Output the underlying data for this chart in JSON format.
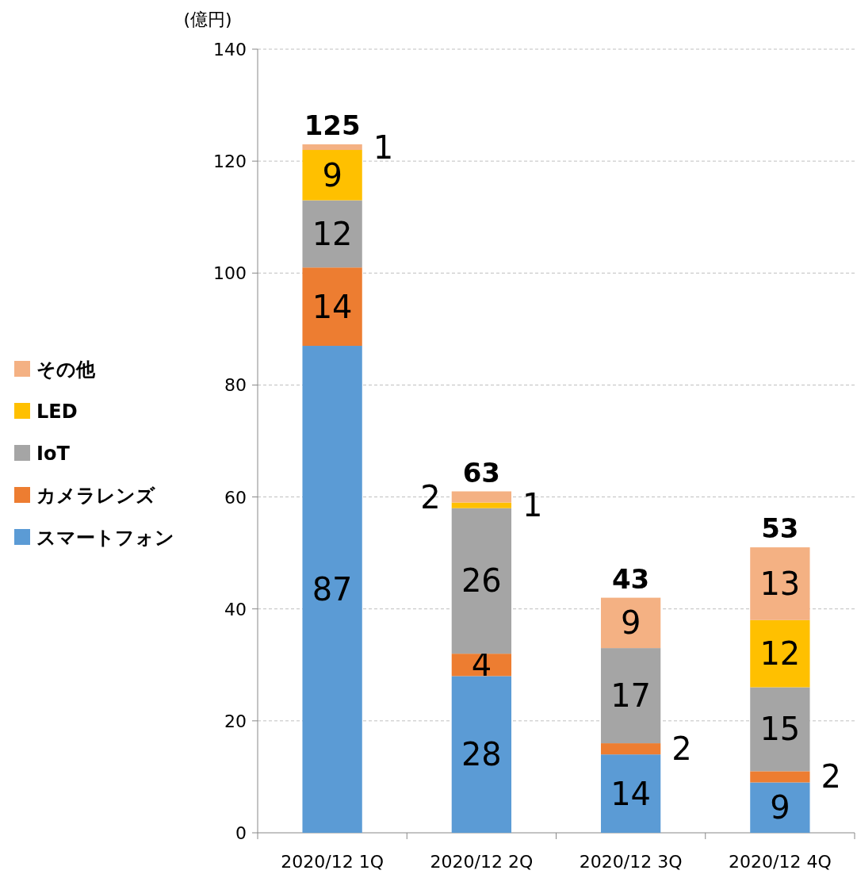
{
  "chart_data": {
    "type": "bar",
    "stacked": true,
    "ylabel": "(億円)",
    "categories": [
      "2020/12 1Q",
      "2020/12 2Q",
      "2020/12 3Q",
      "2020/12 4Q"
    ],
    "series": [
      {
        "name": "スマートフォン",
        "color": "#5b9bd5",
        "values": [
          87,
          28,
          14,
          9
        ]
      },
      {
        "name": "カメラレンズ",
        "color": "#ed7d31",
        "values": [
          14,
          4,
          2,
          2
        ]
      },
      {
        "name": "IoT",
        "color": "#a5a5a5",
        "values": [
          12,
          26,
          17,
          15
        ]
      },
      {
        "name": "LED",
        "color": "#ffc000",
        "values": [
          9,
          1,
          null,
          12
        ]
      },
      {
        "name": "その他",
        "color": "#f4b183",
        "values": [
          1,
          2,
          9,
          13
        ]
      }
    ],
    "totals": [
      "125",
      "63",
      "43",
      "53"
    ],
    "data_labels": true,
    "ylim": [
      0,
      140
    ],
    "yticks": [
      0,
      20,
      40,
      60,
      80,
      100,
      120,
      140
    ],
    "grid": "y",
    "legend": "left"
  }
}
